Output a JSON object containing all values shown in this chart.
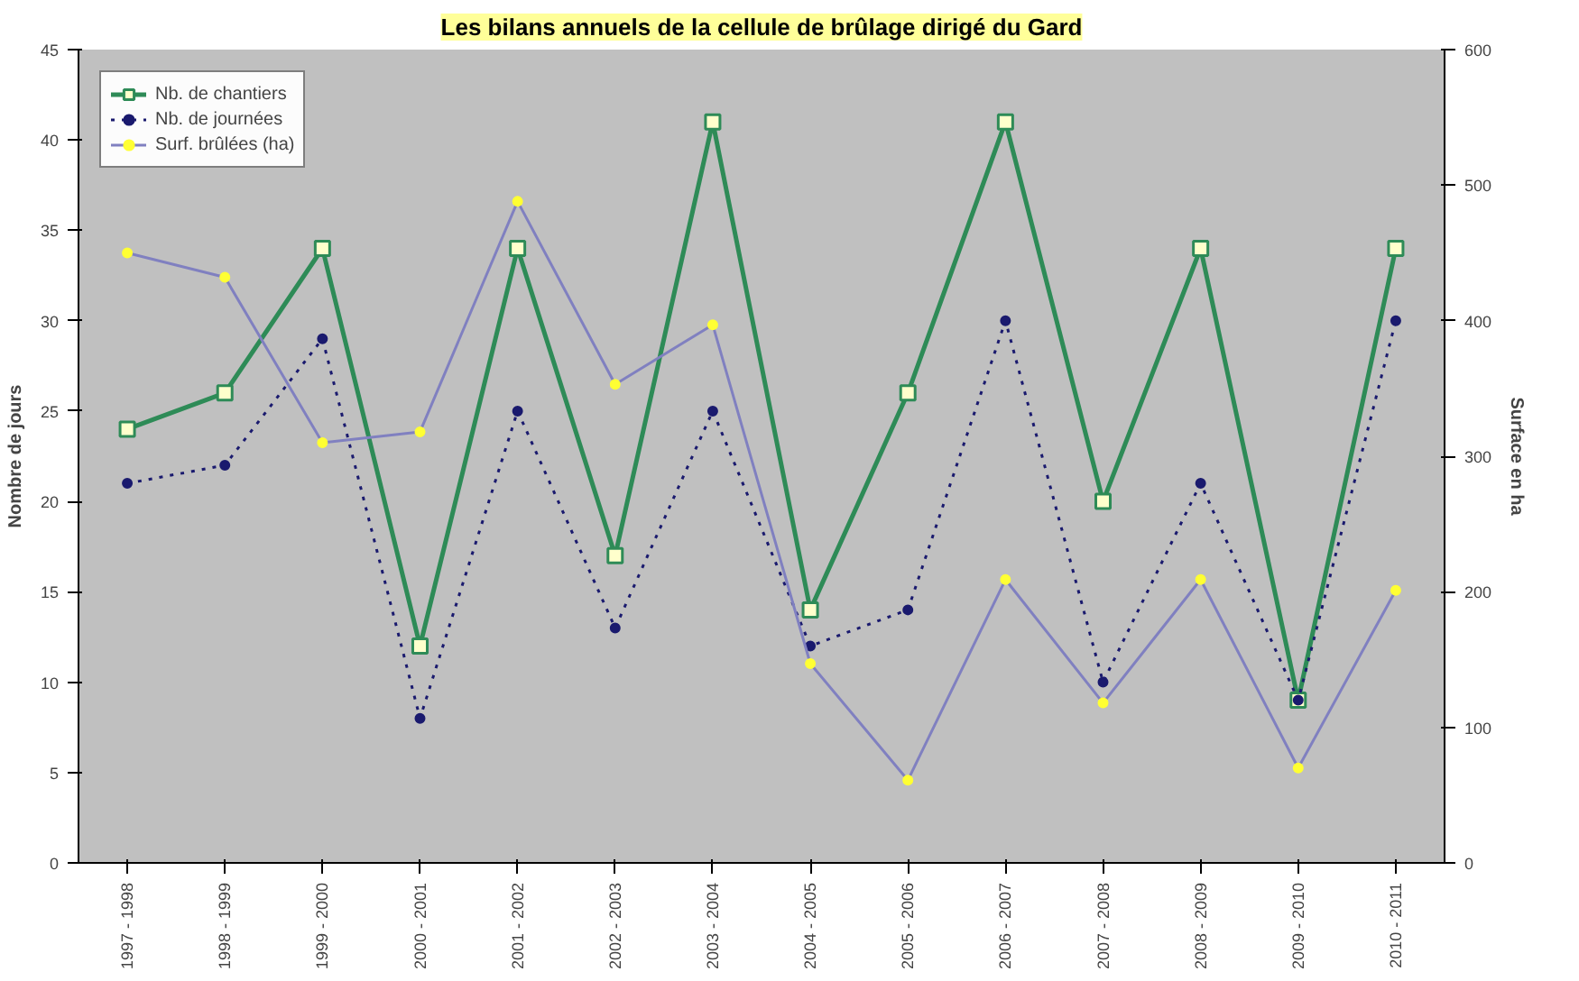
{
  "chart_data": {
    "type": "line",
    "title": "Les bilans annuels de la cellule de brûlage dirigé du Gard",
    "ylabel": "Nombre de jours",
    "y2label": "Surface en ha",
    "categories": [
      "1997 - 1998",
      "1998 - 1999",
      "1999 - 2000",
      "2000 - 2001",
      "2001 - 2002",
      "2002 - 2003",
      "2003 - 2004",
      "2004 - 2005",
      "2005 - 2006",
      "2006 - 2007",
      "2007 - 2008",
      "2008 - 2009",
      "2009 - 2010",
      "2010 - 2011"
    ],
    "series": [
      {
        "name": "Nb. de chantiers",
        "color": "#2e8b57",
        "marker": "square",
        "line_style": "solid",
        "values": [
          24,
          26,
          34,
          12,
          34,
          17,
          41,
          14,
          26,
          41,
          20,
          34,
          9,
          34
        ]
      },
      {
        "name": "Nb. de journées",
        "color": "#1a1a6e",
        "marker": "circle",
        "line_style": "dotted",
        "values": [
          21,
          22,
          29,
          8,
          25,
          13,
          25,
          12,
          14,
          30,
          10,
          21,
          9,
          30
        ]
      },
      {
        "name": "Surf. brûlées (ha)",
        "color": "#8080c0",
        "marker": "circle",
        "line_style": "solid",
        "axis": "y2",
        "values": [
          450,
          432,
          310,
          318,
          488,
          353,
          397,
          147,
          61,
          209,
          118,
          209,
          70,
          201
        ]
      }
    ],
    "ylim": [
      0,
      45
    ],
    "yticks": [
      0,
      5,
      10,
      15,
      20,
      25,
      30,
      35,
      40,
      45
    ],
    "y2lim": [
      0,
      600
    ],
    "y2ticks": [
      0,
      100,
      200,
      300,
      400,
      500,
      600
    ],
    "grid": false,
    "legend": "top left"
  }
}
